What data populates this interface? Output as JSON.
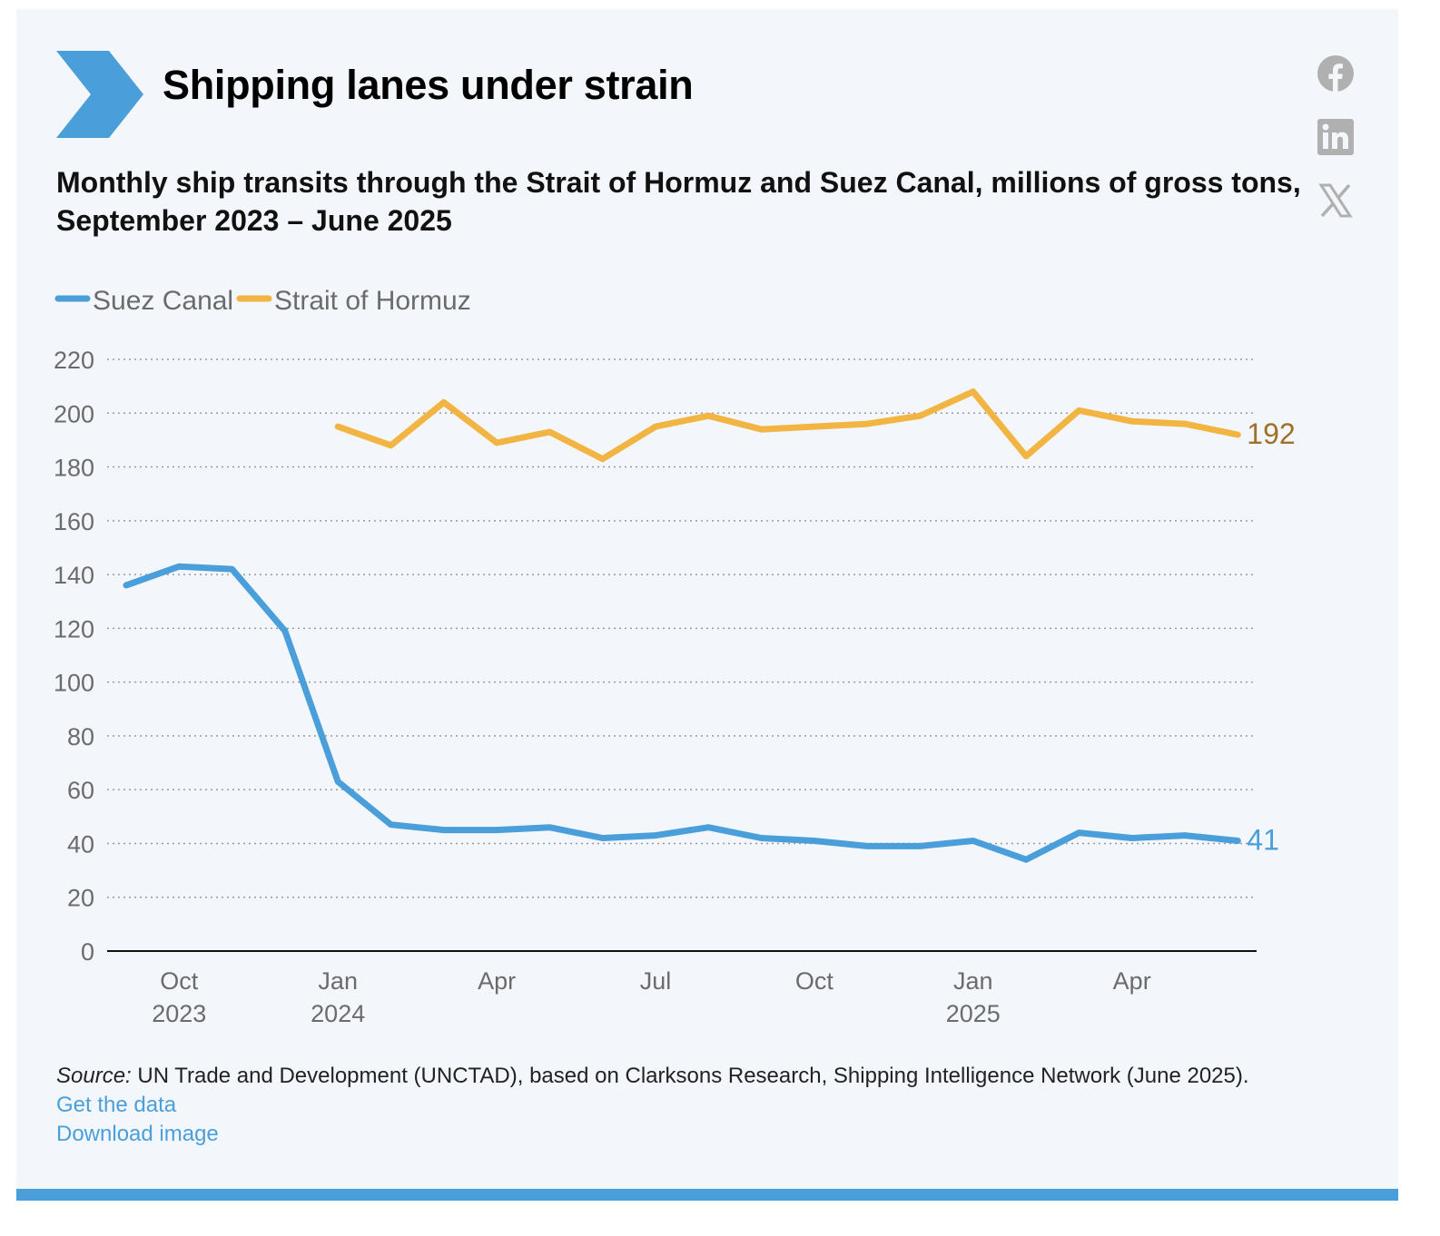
{
  "header": {
    "title": "Shipping lanes under strain",
    "subtitle": "Monthly ship transits through the Strait of Hormuz and Suez Canal, millions of gross tons, September 2023 – June 2025"
  },
  "share_icons": [
    "facebook-icon",
    "linkedin-icon",
    "x-icon"
  ],
  "colors": {
    "background": "#f3f7fc",
    "accent": "#4a9fda",
    "suez": "#4a9fda",
    "hormuz": "#f2b544",
    "hormuz_label": "#a06f2a",
    "grid": "#9a9a9a",
    "share_icon": "#b0b0b0"
  },
  "chart_data": {
    "type": "line",
    "ylim": [
      0,
      220
    ],
    "yticks": [
      "0",
      "20",
      "40",
      "60",
      "80",
      "100",
      "120",
      "140",
      "160",
      "180",
      "200",
      "220"
    ],
    "grid": "horizontal dotted",
    "legend_position": "top-left",
    "x": [
      "2023-09",
      "2023-10",
      "2023-11",
      "2023-12",
      "2024-01",
      "2024-02",
      "2024-03",
      "2024-04",
      "2024-05",
      "2024-06",
      "2024-07",
      "2024-08",
      "2024-09",
      "2024-10",
      "2024-11",
      "2024-12",
      "2025-01",
      "2025-02",
      "2025-03",
      "2025-04",
      "2025-05",
      "2025-06"
    ],
    "xticks": [
      {
        "at": "2023-10",
        "line1": "Oct",
        "line2": "2023"
      },
      {
        "at": "2024-01",
        "line1": "Jan",
        "line2": "2024"
      },
      {
        "at": "2024-04",
        "line1": "Apr",
        "line2": ""
      },
      {
        "at": "2024-07",
        "line1": "Jul",
        "line2": ""
      },
      {
        "at": "2024-10",
        "line1": "Oct",
        "line2": ""
      },
      {
        "at": "2025-01",
        "line1": "Jan",
        "line2": "2025"
      },
      {
        "at": "2025-04",
        "line1": "Apr",
        "line2": ""
      }
    ],
    "series": [
      {
        "name": "Suez Canal",
        "color": "#4a9fda",
        "end_label": "41",
        "values": [
          136,
          143,
          142,
          119,
          63,
          47,
          45,
          45,
          46,
          42,
          43,
          46,
          42,
          41,
          39,
          39,
          41,
          34,
          44,
          42,
          43,
          41
        ]
      },
      {
        "name": "Strait of Hormuz",
        "color": "#f2b544",
        "label_color": "#a06f2a",
        "end_label": "192",
        "values": [
          null,
          null,
          null,
          null,
          195,
          188,
          204,
          189,
          193,
          183,
          195,
          199,
          194,
          195,
          196,
          199,
          208,
          184,
          201,
          197,
          196,
          192
        ]
      }
    ]
  },
  "footer": {
    "source_lead": "Source:",
    "source_text": " UN Trade and Development (UNCTAD), based on Clarksons Research, Shipping Intelligence Network (June 2025).",
    "get_data_link": "Get the data",
    "download_link": "Download image"
  }
}
